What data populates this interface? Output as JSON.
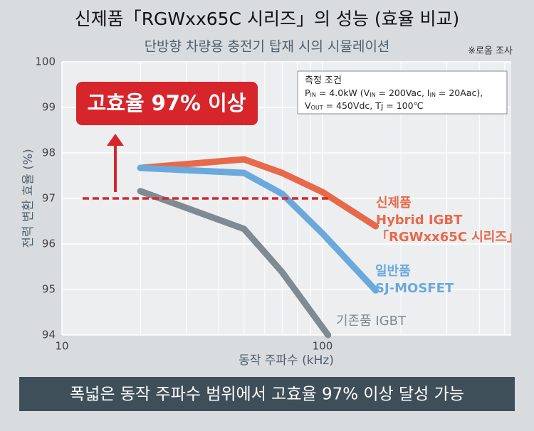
{
  "chart_data": {
    "type": "line",
    "title": "신제품「RGWxx65C 시리즈」의 성능 (효율 비교)",
    "subtitle": "단방향 차량용 충전기 탑재 시의 시뮬레이션",
    "source": "※로옴 조사",
    "y_label": "전력 변환 효율 (%)",
    "x_label": "동작 주파수 (kHz)",
    "callout": "고효율 97% 이상",
    "conditions": [
      [
        {
          "t": "측정 조건"
        }
      ],
      [
        {
          "t": "P"
        },
        {
          "sub": "IN"
        },
        {
          "t": " = 4.0kW (V"
        },
        {
          "sub": "IN"
        },
        {
          "t": " = 200Vac, I"
        },
        {
          "sub": "IN"
        },
        {
          "t": " = 20Aac),"
        }
      ],
      [
        {
          "t": "V"
        },
        {
          "sub": "OUT"
        },
        {
          "t": " = 450Vdc, Tj = 100℃"
        }
      ]
    ],
    "banner": "폭넓은 동작 주파수 범위에서 고효율 97% 이상 달성 가능",
    "xlog": true,
    "xlim": [
      10,
      530
    ],
    "xticks": [
      10,
      100
    ],
    "xgrid_minor": [
      20,
      30,
      40,
      50,
      60,
      70,
      80,
      90,
      200,
      300,
      400,
      500
    ],
    "ylim": [
      94,
      100
    ],
    "yticks": [
      94,
      95,
      96,
      97,
      98,
      99,
      100
    ],
    "grid": true,
    "target": {
      "value": 97,
      "x": [
        12,
        108
      ],
      "color": "#d6262c"
    },
    "series": [
      {
        "name": [
          "신제품",
          "Hybrid IGBT",
          "「RGWxx65C 시리즈」"
        ],
        "color": "#e8694a",
        "x": [
          20,
          50,
          70,
          100,
          160
        ],
        "values": [
          97.67,
          97.86,
          97.56,
          97.14,
          96.39
        ]
      },
      {
        "name": [
          "일반품",
          "SJ-MOSFET"
        ],
        "color": "#6aa9dc",
        "x": [
          20,
          50,
          70,
          100,
          160
        ],
        "values": [
          97.67,
          97.56,
          97.1,
          96.23,
          94.98
        ]
      },
      {
        "name": [
          "기존품 IGBT"
        ],
        "color": "#7f8a92",
        "x": [
          20,
          50,
          70,
          105
        ],
        "values": [
          97.16,
          96.33,
          95.38,
          94.0
        ]
      }
    ]
  }
}
